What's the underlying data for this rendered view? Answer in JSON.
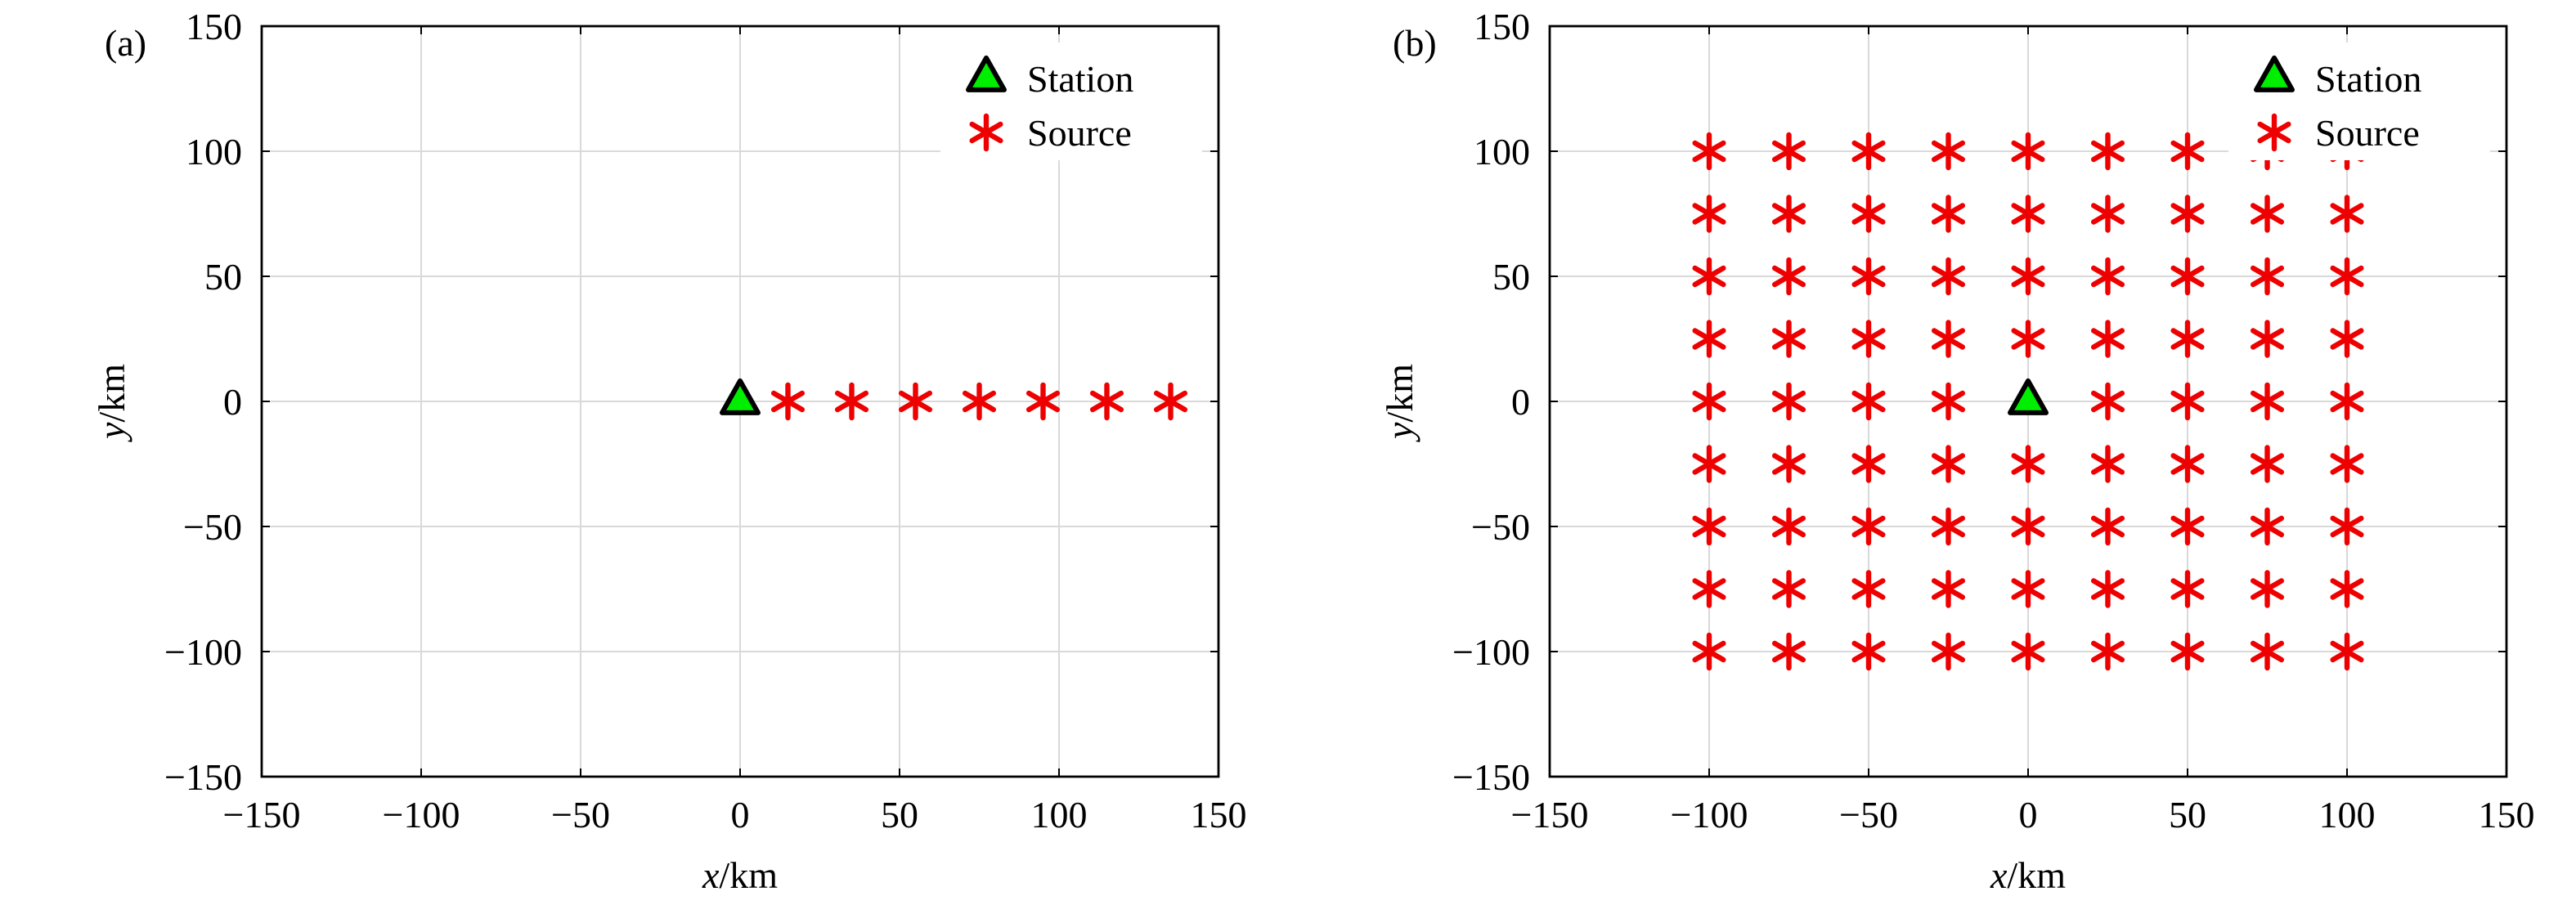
{
  "chart_data": [
    {
      "type": "scatter",
      "panel_label": "(a)",
      "xlabel": {
        "var": "x",
        "unit": "/km"
      },
      "ylabel": {
        "var": "y",
        "unit": "/km"
      },
      "xlim": [
        -150,
        150
      ],
      "ylim": [
        -150,
        150
      ],
      "xticks": [
        -150,
        -100,
        -50,
        0,
        50,
        100,
        150
      ],
      "yticks": [
        -150,
        -100,
        -50,
        0,
        50,
        100,
        150
      ],
      "xtick_labels": [
        "−150",
        "−100",
        "−50",
        "0",
        "50",
        "100",
        "150"
      ],
      "ytick_labels": [
        "−150",
        "−100",
        "−50",
        "0",
        "50",
        "100",
        "150"
      ],
      "grid": true,
      "legend": {
        "position": "top-right",
        "entries": [
          "Station",
          "Source"
        ]
      },
      "series": [
        {
          "name": "Station",
          "marker": "triangle",
          "color": "#00ee00",
          "points": [
            [
              0,
              0
            ]
          ]
        },
        {
          "name": "Source",
          "marker": "asterisk",
          "color": "#ee0000",
          "points": [
            [
              15,
              0
            ],
            [
              35,
              0
            ],
            [
              55,
              0
            ],
            [
              75,
              0
            ],
            [
              95,
              0
            ],
            [
              115,
              0
            ],
            [
              135,
              0
            ]
          ]
        }
      ]
    },
    {
      "type": "scatter",
      "panel_label": "(b)",
      "xlabel": {
        "var": "x",
        "unit": "/km"
      },
      "ylabel": {
        "var": "y",
        "unit": "/km"
      },
      "xlim": [
        -150,
        150
      ],
      "ylim": [
        -150,
        150
      ],
      "xticks": [
        -150,
        -100,
        -50,
        0,
        50,
        100,
        150
      ],
      "yticks": [
        -150,
        -100,
        -50,
        0,
        50,
        100,
        150
      ],
      "xtick_labels": [
        "−150",
        "−100",
        "−50",
        "0",
        "50",
        "100",
        "150"
      ],
      "ytick_labels": [
        "−150",
        "−100",
        "−50",
        "0",
        "50",
        "100",
        "150"
      ],
      "grid": true,
      "legend": {
        "position": "top-right",
        "entries": [
          "Station",
          "Source"
        ]
      },
      "series": [
        {
          "name": "Station",
          "marker": "triangle",
          "color": "#00ee00",
          "points": [
            [
              0,
              0
            ]
          ]
        },
        {
          "name": "Source",
          "marker": "asterisk",
          "color": "#ee0000",
          "grid_x": [
            -100,
            -75,
            -50,
            -25,
            0,
            25,
            50,
            75,
            100
          ],
          "grid_y": [
            -100,
            -75,
            -50,
            -25,
            0,
            25,
            50,
            75,
            100
          ],
          "exclude": [
            [
              0,
              0
            ]
          ]
        }
      ]
    }
  ]
}
